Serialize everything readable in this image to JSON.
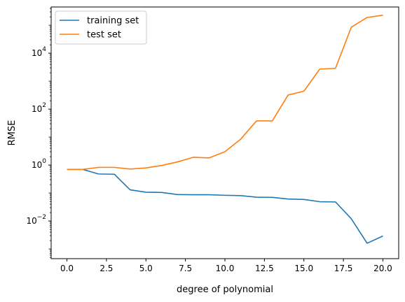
{
  "chart_data": {
    "type": "line",
    "title": "",
    "xlabel": "degree of polynomial",
    "ylabel": "RMSE",
    "yscale": "log",
    "xlim": [
      -1,
      21
    ],
    "ylim": [
      0.00045,
      450000
    ],
    "xticks": [
      0,
      2.5,
      5,
      7.5,
      10,
      12.5,
      15,
      17.5,
      20
    ],
    "xtick_labels": [
      "0.0",
      "2.5",
      "5.0",
      "7.5",
      "10.0",
      "12.5",
      "15.0",
      "17.5",
      "20.0"
    ],
    "yticks": [
      0.01,
      1,
      100,
      10000
    ],
    "ytick_labels": [
      {
        "base": "10",
        "exp": "−2"
      },
      {
        "base": "10",
        "exp": "0"
      },
      {
        "base": "10",
        "exp": "2"
      },
      {
        "base": "10",
        "exp": "4"
      }
    ],
    "grid": false,
    "legend_position": "top-left",
    "x": [
      0,
      1,
      2,
      3,
      4,
      5,
      6,
      7,
      8,
      9,
      10,
      11,
      12,
      13,
      14,
      15,
      16,
      17,
      18,
      19,
      20
    ],
    "series": [
      {
        "name": "training set",
        "color": "#1f77b4",
        "values": [
          0.7,
          0.7,
          0.48,
          0.47,
          0.13,
          0.107,
          0.105,
          0.088,
          0.087,
          0.087,
          0.083,
          0.081,
          0.071,
          0.07,
          0.061,
          0.059,
          0.049,
          0.048,
          0.012,
          0.0016,
          0.0029
        ]
      },
      {
        "name": "test set",
        "color": "#ff7f0e",
        "values": [
          0.7,
          0.7,
          0.83,
          0.83,
          0.72,
          0.79,
          0.97,
          1.3,
          1.9,
          1.8,
          3.0,
          8.5,
          38,
          38,
          320,
          440,
          2700,
          2900,
          85000,
          190000,
          230000
        ]
      }
    ]
  }
}
